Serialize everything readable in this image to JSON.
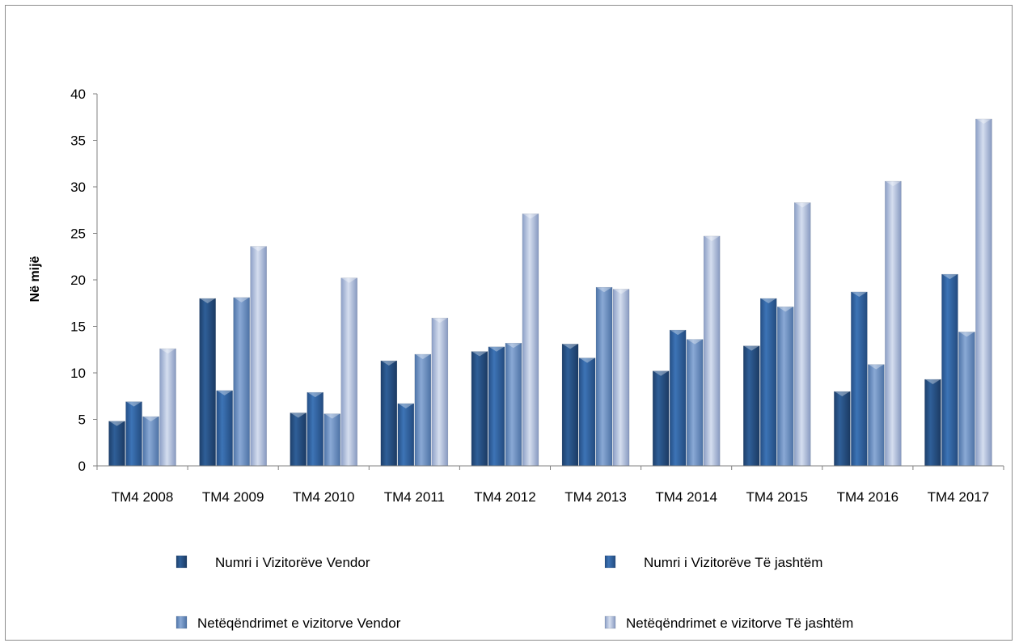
{
  "chart_data": {
    "type": "bar",
    "title": "",
    "xlabel": "",
    "ylabel": "Në mijë",
    "ylim": [
      0,
      40
    ],
    "yticks": [
      0,
      5,
      10,
      15,
      20,
      25,
      30,
      35,
      40
    ],
    "grid": false,
    "legend_position": "bottom",
    "categories": [
      "TM4 2008",
      "TM4 2009",
      "TM4 2010",
      "TM4 2011",
      "TM4 2012",
      "TM4 2013",
      "TM4 2014",
      "TM4 2015",
      "TM4 2016",
      "TM4 2017"
    ],
    "series": [
      {
        "name": "Numri i Vizitorëve Vendor",
        "color": "#2e5c93",
        "values": [
          4.8,
          18.0,
          5.7,
          11.3,
          12.3,
          13.1,
          10.2,
          12.9,
          8.0,
          9.3
        ]
      },
      {
        "name": "Numri i Vizitorëve Të jashtëm",
        "color": "#3a6fb0",
        "values": [
          6.9,
          8.1,
          7.9,
          6.7,
          12.8,
          11.6,
          14.6,
          18.0,
          18.7,
          20.6
        ]
      },
      {
        "name": "Netëqëndrimet e vizitorve Vendor",
        "color": "#6e93c6",
        "values": [
          5.3,
          18.1,
          5.6,
          12.0,
          13.2,
          19.2,
          13.6,
          17.1,
          10.9,
          14.4
        ]
      },
      {
        "name": "Netëqëndrimet e vizitorve  Të jashtëm",
        "color": "#a9badb",
        "values": [
          12.6,
          23.6,
          20.2,
          15.9,
          27.1,
          19.0,
          24.7,
          28.3,
          30.6,
          37.3
        ]
      }
    ]
  }
}
